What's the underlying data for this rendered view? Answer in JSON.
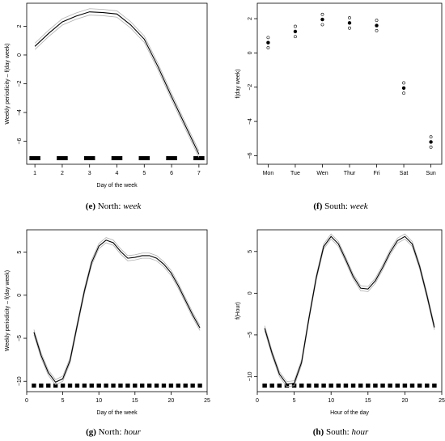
{
  "chart_data": [
    {
      "type": "line",
      "id": "e",
      "caption": {
        "letter": "(e)",
        "region": "North:",
        "variable": "week"
      },
      "xlabel": "Day of the week",
      "ylabel": "Weekly periodicity – f(day week)",
      "xlim": [
        0.7,
        7.3
      ],
      "ylim": [
        -7.6,
        3.6
      ],
      "xticks": [
        1,
        2,
        3,
        4,
        5,
        6,
        7
      ],
      "xtick_labels": [
        "1",
        "2",
        "3",
        "4",
        "5",
        "6",
        "7"
      ],
      "yticks": [
        2,
        0,
        -2,
        -4,
        -6
      ],
      "ytick_labels": [
        "2",
        "0",
        "−2",
        "−4",
        "−6"
      ],
      "grid": false,
      "rug": {
        "x": [
          1,
          2,
          3,
          4,
          5,
          6,
          7
        ],
        "halfwidth": 0.2
      },
      "series": [
        {
          "role": "fit",
          "x": [
            1,
            1.5,
            2,
            2.5,
            3,
            3.5,
            4,
            4.5,
            5,
            5.5,
            6,
            6.5,
            7
          ],
          "y": [
            0.6,
            1.5,
            2.3,
            2.7,
            3.0,
            2.95,
            2.85,
            2.1,
            1.1,
            -0.8,
            -2.9,
            -4.9,
            -6.9
          ]
        },
        {
          "role": "band",
          "offset": 0.22
        }
      ]
    },
    {
      "type": "scatter",
      "id": "f",
      "caption": {
        "letter": "(f)",
        "region": "South:",
        "variable": "week"
      },
      "xlabel": "",
      "ylabel": "f(day week)",
      "xlim": [
        0.6,
        7.4
      ],
      "ylim": [
        -6.5,
        2.9
      ],
      "xticks": [
        1,
        2,
        3,
        4,
        5,
        6,
        7
      ],
      "xtick_labels": [
        "Mon",
        "Tue",
        "Wen",
        "Thur",
        "Fri",
        "Sat",
        "Sun"
      ],
      "yticks": [
        2,
        0,
        -2,
        -4,
        -6
      ],
      "ytick_labels": [
        "2",
        "0",
        "−2",
        "−4",
        "−6"
      ],
      "grid": false,
      "points": [
        {
          "x": 1,
          "y": 0.6,
          "lo": 0.3,
          "hi": 0.9
        },
        {
          "x": 2,
          "y": 1.25,
          "lo": 0.95,
          "hi": 1.55
        },
        {
          "x": 3,
          "y": 1.95,
          "lo": 1.65,
          "hi": 2.25
        },
        {
          "x": 4,
          "y": 1.75,
          "lo": 1.45,
          "hi": 2.05
        },
        {
          "x": 5,
          "y": 1.6,
          "lo": 1.3,
          "hi": 1.9
        },
        {
          "x": 6,
          "y": -2.05,
          "lo": -2.35,
          "hi": -1.75
        },
        {
          "x": 7,
          "y": -5.2,
          "lo": -5.5,
          "hi": -4.9
        }
      ]
    },
    {
      "type": "line",
      "id": "g",
      "caption": {
        "letter": "(g)",
        "region": "North:",
        "variable": "hour"
      },
      "xlabel": "Day of the week",
      "ylabel": "Weekly periodicity – f(day week)",
      "xlim": [
        0,
        25
      ],
      "ylim": [
        -11.2,
        7.6
      ],
      "xticks": [
        0,
        5,
        10,
        15,
        20,
        25
      ],
      "xtick_labels": [
        "0",
        "5",
        "10",
        "15",
        "20",
        "25"
      ],
      "yticks": [
        5,
        0,
        -5,
        -10
      ],
      "ytick_labels": [
        "5",
        "0",
        "−5",
        "−10"
      ],
      "grid": false,
      "rug": {
        "x": [
          1,
          2,
          3,
          4,
          5,
          6,
          7,
          8,
          9,
          10,
          11,
          12,
          13,
          14,
          15,
          16,
          17,
          18,
          19,
          20,
          21,
          22,
          23,
          24
        ],
        "halfwidth": 0.3
      },
      "series": [
        {
          "role": "fit",
          "x": [
            1,
            2,
            3,
            4,
            5,
            6,
            7,
            8,
            9,
            10,
            11,
            12,
            13,
            14,
            15,
            16,
            17,
            18,
            19,
            20,
            21,
            22,
            23,
            24
          ],
          "y": [
            -4.3,
            -7.0,
            -9.0,
            -10.1,
            -9.7,
            -7.6,
            -3.5,
            0.5,
            3.8,
            5.7,
            6.4,
            6.1,
            5.1,
            4.3,
            4.4,
            4.6,
            4.6,
            4.3,
            3.6,
            2.6,
            1.1,
            -0.6,
            -2.3,
            -3.8
          ]
        },
        {
          "role": "band",
          "offset": 0.3
        }
      ]
    },
    {
      "type": "line",
      "id": "h",
      "caption": {
        "letter": "(h)",
        "region": "South:",
        "variable": "hour"
      },
      "xlabel": "Hour of the day",
      "ylabel": "f(Hour)",
      "xlim": [
        0,
        25
      ],
      "ylim": [
        -11.8,
        7.6
      ],
      "xticks": [
        0,
        5,
        10,
        15,
        20,
        25
      ],
      "xtick_labels": [
        "0",
        "5",
        "10",
        "15",
        "20",
        "25"
      ],
      "yticks": [
        5,
        0,
        -5,
        -10
      ],
      "ytick_labels": [
        "5",
        "0",
        "−5",
        "−10"
      ],
      "grid": false,
      "rug": {
        "x": [
          1,
          2,
          3,
          4,
          5,
          6,
          7,
          8,
          9,
          10,
          11,
          12,
          13,
          14,
          15,
          16,
          17,
          18,
          19,
          20,
          21,
          22,
          23,
          24
        ],
        "halfwidth": 0.3
      },
      "series": [
        {
          "role": "fit",
          "x": [
            1,
            2,
            3,
            4,
            5,
            6,
            7,
            8,
            9,
            10,
            11,
            12,
            13,
            14,
            15,
            16,
            17,
            18,
            19,
            20,
            21,
            22,
            23,
            24
          ],
          "y": [
            -4.2,
            -7.2,
            -9.7,
            -10.9,
            -10.8,
            -8.3,
            -3.0,
            1.9,
            5.6,
            6.8,
            5.9,
            4.0,
            2.0,
            0.6,
            0.5,
            1.5,
            3.1,
            4.9,
            6.3,
            6.8,
            5.9,
            3.2,
            -0.3,
            -4.1
          ]
        },
        {
          "role": "band",
          "offset": 0.3
        }
      ]
    }
  ]
}
